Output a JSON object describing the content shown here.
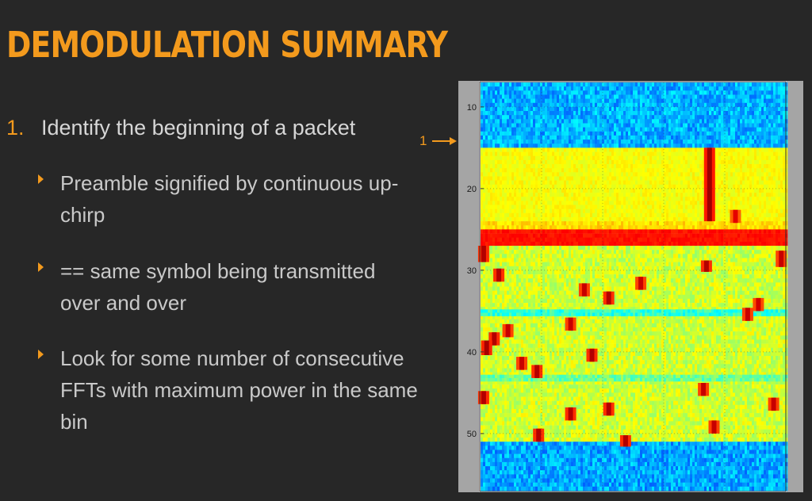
{
  "slide": {
    "title": "DEMODULATION SUMMARY",
    "item_number": "1.",
    "item_text": "Identify the beginning of a packet",
    "bullets": [
      "Preamble signified by continuous up-chirp",
      "== same symbol being transmitted over and over",
      "Look for some number of consecutive FFTs with maximum power in the same bin"
    ],
    "marker": {
      "label": "1"
    }
  },
  "colors": {
    "background": "#272727",
    "accent": "#f39a1d",
    "text": "#d6d6d6"
  },
  "chart_data": {
    "type": "heatmap",
    "y_ticks": [
      10,
      20,
      30,
      40,
      50
    ],
    "y_range": [
      7,
      57
    ],
    "x_range": [
      0,
      200
    ],
    "x_ticks": [],
    "grid": true,
    "colormap": "jet",
    "rows": [
      {
        "rows": [
          7,
          15
        ],
        "level": 0.3,
        "noise": 0.07
      },
      {
        "rows": [
          15,
          24
        ],
        "level": 0.62,
        "noise": 0.03
      },
      {
        "rows": [
          24,
          25
        ],
        "level": 0.66,
        "noise": 0.04
      },
      {
        "rows": [
          25,
          27
        ],
        "level": 0.86,
        "noise": 0.02
      },
      {
        "rows": [
          27,
          51
        ],
        "level": 0.58,
        "noise": 0.06
      },
      {
        "rows": [
          34.8,
          35.6
        ],
        "level": 0.42,
        "noise": 0.06
      },
      {
        "rows": [
          42.8,
          43.6
        ],
        "level": 0.48,
        "noise": 0.06
      },
      {
        "rows": [
          51,
          57
        ],
        "level": 0.29,
        "noise": 0.07
      }
    ],
    "peaks": [
      {
        "x": 150,
        "y0": 15,
        "y1": 24,
        "level": 0.97
      },
      {
        "x": 167,
        "y0": 22.6,
        "y1": 24.2,
        "level": 0.9
      },
      {
        "x": 2,
        "y0": 27,
        "y1": 29,
        "level": 0.95
      },
      {
        "x": 148,
        "y0": 28.8,
        "y1": 30.2,
        "level": 0.95
      },
      {
        "x": 197,
        "y0": 27.6,
        "y1": 29.6,
        "level": 0.93
      },
      {
        "x": 12,
        "y0": 29.8,
        "y1": 31.4,
        "level": 0.95
      },
      {
        "x": 105,
        "y0": 30.8,
        "y1": 32.4,
        "level": 0.93
      },
      {
        "x": 68,
        "y0": 31.6,
        "y1": 33.2,
        "level": 0.93
      },
      {
        "x": 84,
        "y0": 32.6,
        "y1": 34.2,
        "level": 0.95
      },
      {
        "x": 182,
        "y0": 33.4,
        "y1": 35,
        "level": 0.92
      },
      {
        "x": 175,
        "y0": 34.6,
        "y1": 36.2,
        "level": 0.93
      },
      {
        "x": 59,
        "y0": 35.8,
        "y1": 37.4,
        "level": 0.93
      },
      {
        "x": 18,
        "y0": 36.6,
        "y1": 38.2,
        "level": 0.93
      },
      {
        "x": 9,
        "y0": 37.6,
        "y1": 39.2,
        "level": 0.95
      },
      {
        "x": 4,
        "y0": 38.6,
        "y1": 40.4,
        "level": 0.96
      },
      {
        "x": 73,
        "y0": 39.6,
        "y1": 41.2,
        "level": 0.95
      },
      {
        "x": 27,
        "y0": 40.6,
        "y1": 42.2,
        "level": 0.93
      },
      {
        "x": 37,
        "y0": 41.6,
        "y1": 43.2,
        "level": 0.95
      },
      {
        "x": 146,
        "y0": 43.8,
        "y1": 45.4,
        "level": 0.93
      },
      {
        "x": 2,
        "y0": 44.8,
        "y1": 46.4,
        "level": 0.95
      },
      {
        "x": 192,
        "y0": 45.6,
        "y1": 47.2,
        "level": 0.93
      },
      {
        "x": 84,
        "y0": 46.2,
        "y1": 47.8,
        "level": 0.95
      },
      {
        "x": 59,
        "y0": 46.8,
        "y1": 48.4,
        "level": 0.95
      },
      {
        "x": 153,
        "y0": 48.4,
        "y1": 50,
        "level": 0.93
      },
      {
        "x": 38,
        "y0": 49.4,
        "y1": 51,
        "level": 0.95
      },
      {
        "x": 95,
        "y0": 50.2,
        "y1": 51.6,
        "level": 0.95
      }
    ]
  }
}
